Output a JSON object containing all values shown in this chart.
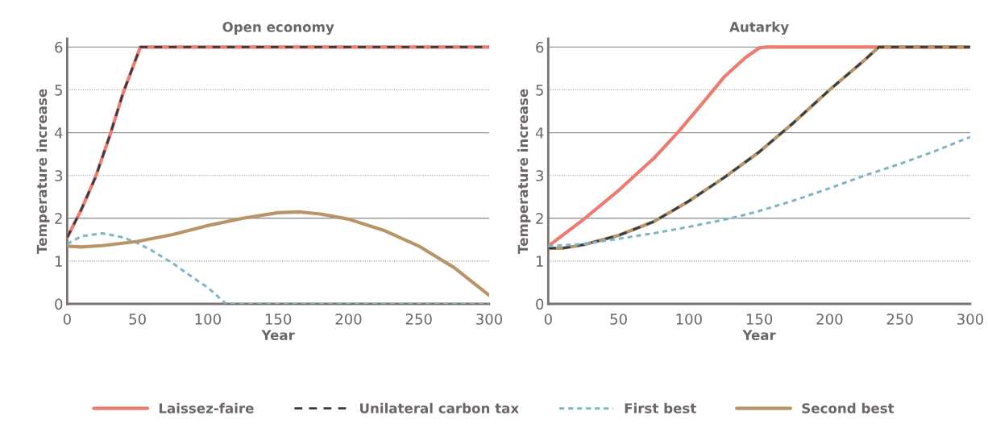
{
  "chart_data": [
    {
      "type": "line",
      "title": "Open economy",
      "xlabel": "Year",
      "ylabel": "Temperature increase",
      "xlim": [
        0,
        300
      ],
      "ylim": [
        0,
        6.2
      ],
      "xticks": [
        0,
        50,
        100,
        150,
        200,
        250,
        300
      ],
      "yticks": [
        0,
        1,
        2,
        3,
        4,
        5,
        6
      ],
      "grid": "y",
      "legend": "bottom",
      "series": [
        {
          "name": "Laissez-faire",
          "color": "#ee7b6f",
          "line_style": "solid",
          "x": [
            0,
            10,
            20,
            30,
            40,
            52,
            300
          ],
          "values": [
            1.55,
            2.2,
            2.95,
            3.9,
            4.95,
            6,
            6
          ]
        },
        {
          "name": "Unilateral carbon tax",
          "color": "#2f3e46",
          "line_style": "dashed",
          "x": [
            0,
            10,
            20,
            30,
            40,
            52,
            300
          ],
          "values": [
            1.55,
            2.2,
            2.95,
            3.9,
            4.95,
            6,
            6
          ]
        },
        {
          "name": "First best",
          "color": "#7fb5c9",
          "line_style": "dotted",
          "x": [
            0,
            10,
            25,
            40,
            50,
            60,
            75,
            90,
            100,
            113,
            300
          ],
          "values": [
            1.4,
            1.58,
            1.65,
            1.55,
            1.42,
            1.25,
            0.95,
            0.6,
            0.38,
            0,
            0
          ]
        },
        {
          "name": "Second best",
          "color": "#b89468",
          "line_style": "solid",
          "x": [
            0,
            10,
            25,
            50,
            75,
            100,
            125,
            150,
            165,
            180,
            200,
            225,
            250,
            275,
            300
          ],
          "values": [
            1.35,
            1.33,
            1.36,
            1.46,
            1.62,
            1.83,
            2.0,
            2.13,
            2.15,
            2.1,
            1.98,
            1.72,
            1.35,
            0.85,
            0.2
          ]
        }
      ]
    },
    {
      "type": "line",
      "title": "Autarky",
      "xlabel": "Year",
      "ylabel": "Temperature increase",
      "xlim": [
        0,
        300
      ],
      "ylim": [
        0,
        6.2
      ],
      "xticks": [
        0,
        50,
        100,
        150,
        200,
        250,
        300
      ],
      "yticks": [
        0,
        1,
        2,
        3,
        4,
        5,
        6
      ],
      "grid": "y",
      "series": [
        {
          "name": "Laissez-faire",
          "color": "#ee7b6f",
          "line_style": "solid",
          "x": [
            0,
            25,
            50,
            75,
            92,
            110,
            125,
            140,
            150,
            155,
            300
          ],
          "values": [
            1.35,
            1.97,
            2.65,
            3.4,
            4.0,
            4.7,
            5.3,
            5.75,
            5.98,
            6,
            6
          ]
        },
        {
          "name": "Second best",
          "color": "#b89468",
          "line_style": "solid",
          "x": [
            0,
            10,
            25,
            50,
            75,
            100,
            125,
            150,
            175,
            200,
            225,
            235,
            300
          ],
          "values": [
            1.3,
            1.3,
            1.38,
            1.6,
            1.92,
            2.4,
            2.95,
            3.55,
            4.25,
            5.0,
            5.7,
            6.0,
            6
          ]
        },
        {
          "name": "Unilateral carbon tax",
          "color": "#2f3e46",
          "line_style": "dashed",
          "x": [
            0,
            10,
            25,
            50,
            75,
            100,
            125,
            150,
            175,
            200,
            225,
            235,
            300
          ],
          "values": [
            1.3,
            1.3,
            1.38,
            1.6,
            1.92,
            2.4,
            2.95,
            3.55,
            4.25,
            5.0,
            5.7,
            6.0,
            6
          ]
        },
        {
          "name": "First best",
          "color": "#7fb5c9",
          "line_style": "dotted",
          "x": [
            0,
            25,
            50,
            75,
            100,
            130,
            150,
            175,
            200,
            225,
            250,
            275,
            300
          ],
          "values": [
            1.35,
            1.4,
            1.52,
            1.65,
            1.8,
            2.0,
            2.17,
            2.42,
            2.7,
            3.0,
            3.27,
            3.57,
            3.9
          ]
        }
      ]
    }
  ]
}
